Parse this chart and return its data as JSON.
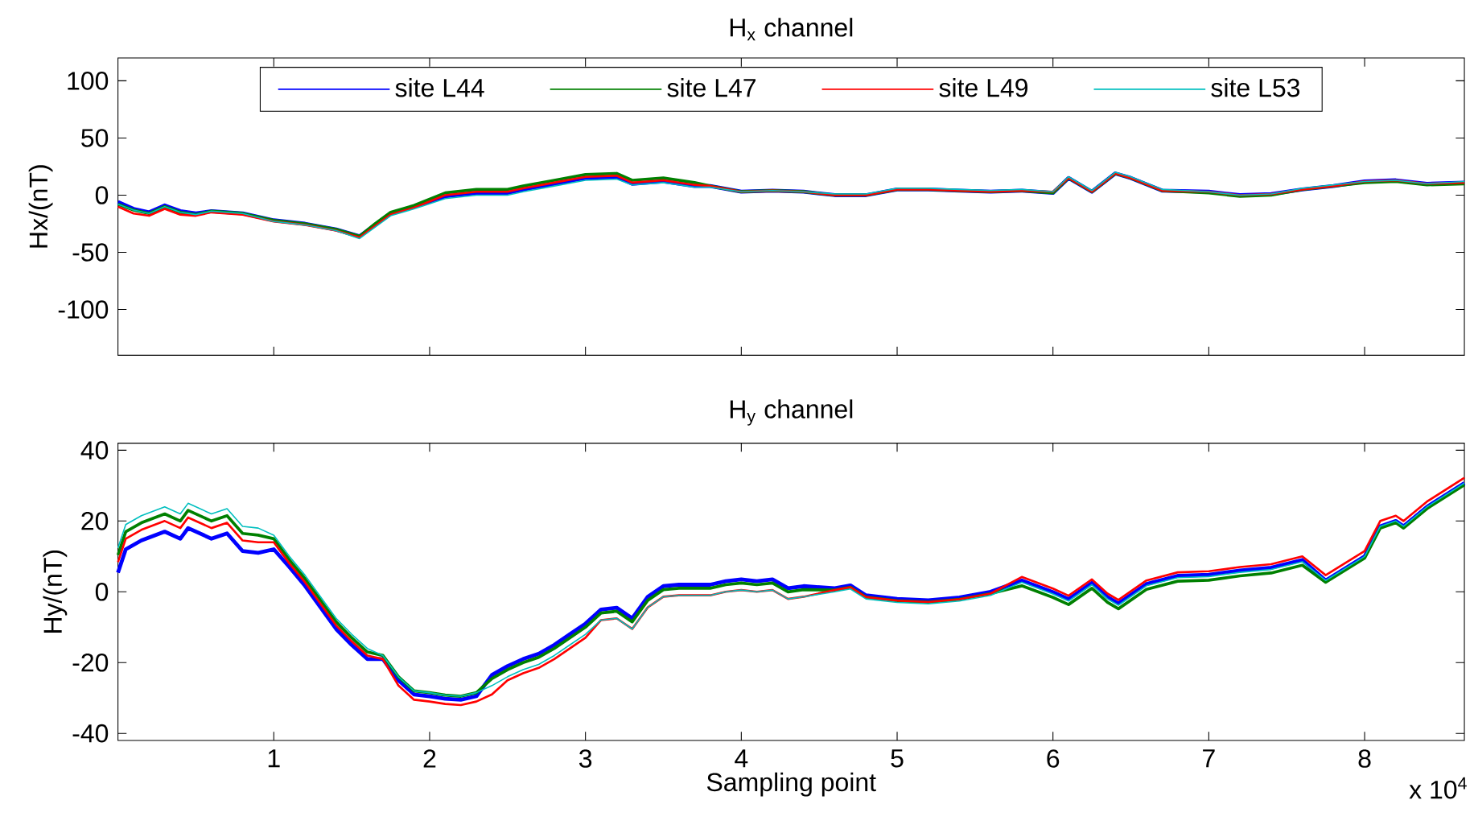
{
  "chart_data": [
    {
      "type": "line",
      "title": "H$_{x}$ channel",
      "ylabel": "Hx/(nT)",
      "xlim": [
        0,
        8.64
      ],
      "ylim": [
        -140,
        120
      ],
      "yticks": [
        -100,
        -50,
        0,
        50,
        100
      ],
      "xticks": [
        {
          "value": 1,
          "label": null
        },
        {
          "value": 2,
          "label": null
        },
        {
          "value": 3,
          "label": null
        },
        {
          "value": 4,
          "label": null
        },
        {
          "value": 5,
          "label": null
        },
        {
          "value": 6,
          "label": null
        },
        {
          "value": 7,
          "label": null
        },
        {
          "value": 8,
          "label": null
        }
      ],
      "tick_labels": "y",
      "legend": "top",
      "line_style": "solid",
      "x": [
        0,
        0.1,
        0.2,
        0.3,
        0.4,
        0.5,
        0.6,
        0.8,
        1.0,
        1.2,
        1.4,
        1.55,
        1.65,
        1.75,
        1.9,
        2.1,
        2.3,
        2.5,
        2.6,
        2.8,
        3.0,
        3.2,
        3.3,
        3.5,
        3.7,
        3.8,
        4.0,
        4.2,
        4.4,
        4.6,
        4.8,
        5.0,
        5.2,
        5.4,
        5.6,
        5.8,
        6.0,
        6.1,
        6.25,
        6.4,
        6.5,
        6.7,
        7.0,
        7.2,
        7.4,
        7.6,
        7.8,
        8.0,
        8.2,
        8.4,
        8.64
      ],
      "series": [
        {
          "name": "site L44",
          "color": "#0000ff",
          "values": [
            -6,
            -12,
            -15,
            -9,
            -14,
            -16,
            -14,
            -16,
            -22,
            -25,
            -30,
            -36,
            -26,
            -16,
            -10,
            -1,
            2,
            2,
            5,
            10,
            15,
            16,
            10,
            12,
            8,
            8,
            3,
            4,
            3,
            0,
            0,
            5,
            5,
            4,
            3,
            4,
            2,
            15,
            3,
            19,
            15,
            4,
            3,
            0,
            1,
            5,
            8,
            12,
            13,
            10,
            11
          ]
        },
        {
          "name": "site L47",
          "color": "#008000",
          "values": [
            -8,
            -13,
            -16,
            -10,
            -15,
            -17,
            -14,
            -16,
            -22,
            -25,
            -30,
            -36,
            -25,
            -15,
            -9,
            2,
            5,
            5,
            8,
            13,
            18,
            19,
            13,
            15,
            11,
            8,
            3,
            4,
            3,
            0,
            0,
            5,
            5,
            4,
            3,
            4,
            2,
            15,
            3,
            19,
            15,
            4,
            2,
            -1,
            0,
            5,
            8,
            11,
            12,
            9,
            10
          ]
        },
        {
          "name": "site L49",
          "color": "#ff0000",
          "values": [
            -10,
            -16,
            -18,
            -12,
            -17,
            -18,
            -15,
            -17,
            -23,
            -26,
            -31,
            -37,
            -27,
            -17,
            -11,
            0,
            3,
            3,
            6,
            11,
            16,
            17,
            11,
            13,
            9,
            8,
            3,
            4,
            3,
            0,
            0,
            5,
            5,
            4,
            3,
            4,
            3,
            15,
            3,
            19,
            15,
            4,
            3,
            0,
            1,
            5,
            8,
            12,
            13,
            10,
            11
          ]
        },
        {
          "name": "site L53",
          "color": "#00bfbf",
          "values": [
            -8,
            -13,
            -16,
            -10,
            -15,
            -17,
            -14,
            -16,
            -23,
            -26,
            -31,
            -38,
            -28,
            -18,
            -12,
            -3,
            0,
            0,
            3,
            8,
            13,
            14,
            9,
            11,
            7,
            7,
            3,
            4,
            3,
            1,
            1,
            6,
            6,
            5,
            4,
            5,
            3,
            16,
            4,
            20,
            16,
            5,
            3,
            0,
            1,
            6,
            9,
            12,
            13,
            10,
            12
          ]
        }
      ]
    },
    {
      "type": "line",
      "title": "H$_{y}$ channel",
      "ylabel": "Hy/(nT)",
      "xlabel": "Sampling point",
      "annotations": [
        "x 10$^{4}$"
      ],
      "xlim": [
        0,
        8.64
      ],
      "ylim": [
        -42,
        42
      ],
      "yticks": [
        -40,
        -20,
        0,
        20,
        40
      ],
      "xticks": [
        1,
        2,
        3,
        4,
        5,
        6,
        7,
        8
      ],
      "line_style": "solid",
      "x": [
        0,
        0.05,
        0.15,
        0.3,
        0.4,
        0.45,
        0.6,
        0.7,
        0.8,
        0.9,
        1.0,
        1.1,
        1.2,
        1.3,
        1.4,
        1.5,
        1.6,
        1.7,
        1.8,
        1.9,
        2.0,
        2.1,
        2.2,
        2.3,
        2.4,
        2.5,
        2.6,
        2.7,
        2.8,
        2.9,
        3.0,
        3.1,
        3.2,
        3.3,
        3.4,
        3.5,
        3.6,
        3.7,
        3.8,
        3.9,
        4.0,
        4.1,
        4.2,
        4.3,
        4.4,
        4.6,
        4.7,
        4.8,
        5.0,
        5.2,
        5.4,
        5.6,
        5.8,
        6.0,
        6.1,
        6.25,
        6.35,
        6.42,
        6.6,
        6.8,
        7.0,
        7.2,
        7.4,
        7.6,
        7.75,
        8.0,
        8.1,
        8.2,
        8.25,
        8.4,
        8.64
      ],
      "series": [
        {
          "color": "#0000ff",
          "values": [
            5.4,
            12,
            14.5,
            17,
            15,
            18,
            15,
            16.5,
            11.5,
            11,
            12,
            7,
            1.7,
            -4.4,
            -10.5,
            -15,
            -19,
            -19,
            -25,
            -29,
            -29.5,
            -30.2,
            -30.5,
            -29.5,
            -23.5,
            -21,
            -19,
            -17.5,
            -15,
            -12,
            -9,
            -5,
            -4.5,
            -7.5,
            -1.4,
            1.6,
            2,
            2,
            2,
            3,
            3.5,
            3,
            3.5,
            1,
            1.6,
            1,
            1.8,
            -1,
            -2,
            -2.4,
            -1.6,
            0,
            3.2,
            -0.1,
            -2.1,
            2.5,
            -1.5,
            -3.3,
            2.2,
            4.5,
            4.8,
            6,
            6.8,
            9,
            3.2,
            10,
            18.5,
            20,
            18.5,
            24,
            30.7
          ]
        },
        {
          "color": "#008000",
          "values": [
            10.4,
            17,
            19.5,
            22,
            20,
            23,
            20,
            21.5,
            16.5,
            16,
            15,
            9,
            3.7,
            -2.4,
            -8.5,
            -13,
            -17,
            -18,
            -24,
            -28,
            -28.5,
            -29.2,
            -29.5,
            -28.5,
            -24.5,
            -22,
            -20,
            -18.5,
            -16,
            -13,
            -10,
            -6,
            -5.5,
            -8.5,
            -2.4,
            0.6,
            1,
            1,
            1,
            2,
            2.5,
            2,
            2.5,
            0,
            0.6,
            0.5,
            1.3,
            -1.5,
            -2.5,
            -2.9,
            -2.1,
            -0.5,
            1.7,
            -1.6,
            -3.6,
            1,
            -3,
            -4.8,
            0.7,
            3,
            3.3,
            4.5,
            5.3,
            7.5,
            2.7,
            9.5,
            18,
            19.5,
            18,
            23.5,
            30.2
          ]
        },
        {
          "color": "#ff0000",
          "values": [
            8.4,
            15,
            17.5,
            20,
            18,
            21,
            18,
            19.5,
            14.5,
            14,
            14,
            8,
            2.7,
            -3.4,
            -9.5,
            -14,
            -18,
            -19,
            -26.5,
            -30.5,
            -31,
            -31.7,
            -32,
            -31,
            -29,
            -25,
            -23,
            -21.5,
            -19,
            -16,
            -13,
            -8,
            -7.5,
            -10.5,
            -4.4,
            -1.4,
            -1,
            -1,
            -1,
            0,
            0.5,
            0,
            0.5,
            -2,
            -1.4,
            0.5,
            1.3,
            -1.5,
            -2.5,
            -2.9,
            -2.1,
            -0.5,
            4.2,
            0.9,
            -1.1,
            3.5,
            -0.5,
            -2.3,
            3.2,
            5.5,
            5.8,
            7,
            7.8,
            10,
            4.7,
            11.5,
            20,
            21.5,
            20,
            25.5,
            32.2
          ]
        },
        {
          "color": "#00bfbf",
          "values": [
            12.4,
            19,
            21.5,
            24,
            22,
            25,
            22,
            23.5,
            18.5,
            18,
            16,
            10,
            4.7,
            -1.4,
            -7.5,
            -12,
            -16,
            -18,
            -24,
            -28,
            -28.5,
            -29.2,
            -29.5,
            -28.5,
            -26.5,
            -24,
            -22,
            -20.5,
            -18,
            -15,
            -12,
            -8,
            -7.5,
            -10.5,
            -4.4,
            -1.4,
            -1,
            -1,
            -1,
            0,
            0.5,
            0,
            0.5,
            -2,
            -1.4,
            0,
            0.8,
            -2,
            -3,
            -3.4,
            -2.6,
            -1,
            2.7,
            -0.6,
            -2.6,
            2,
            -2,
            -3.8,
            1.7,
            4,
            4.3,
            5.5,
            6.3,
            8.5,
            3.2,
            10,
            18.5,
            20,
            18.5,
            24,
            30.7
          ]
        }
      ]
    }
  ]
}
